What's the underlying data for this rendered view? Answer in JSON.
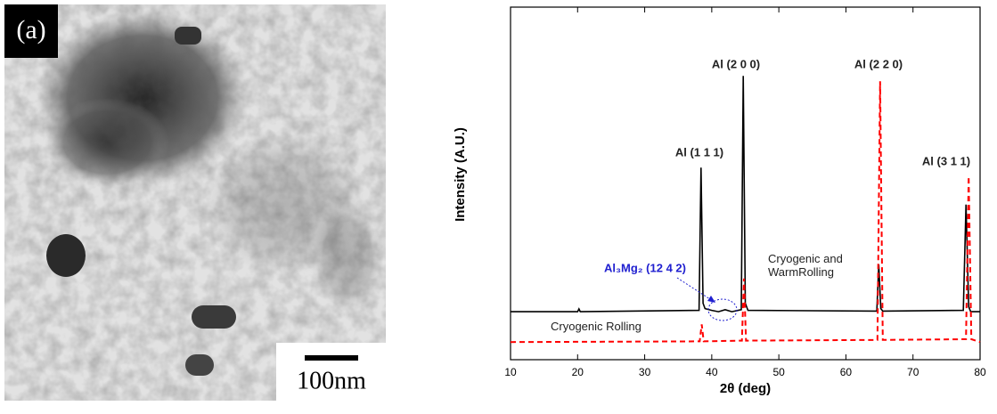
{
  "image": {
    "panel_label": "(a)",
    "scale_bar": "100nm"
  },
  "chart_data": {
    "type": "line",
    "xlabel": "2θ (deg)",
    "ylabel": "Intensity (A.U.)",
    "xlim": [
      10,
      80
    ],
    "xticks": [
      10,
      20,
      30,
      40,
      50,
      60,
      70,
      80
    ],
    "ylim": [
      0,
      100
    ],
    "series": [
      {
        "name": "Cryogenic and WarmRolling",
        "color": "#000000",
        "dash": false,
        "x": [
          10,
          20,
          20.2,
          20.4,
          38.1,
          38.4,
          38.7,
          39.0,
          40,
          41,
          42,
          43,
          44.4,
          44.7,
          45.0,
          45.4,
          64.6,
          64.9,
          65.2,
          65.5,
          77.5,
          77.9,
          78.3,
          78.6,
          80
        ],
        "values": [
          13.6,
          13.6,
          14.4,
          13.6,
          14,
          54.5,
          16,
          14.5,
          14,
          13.6,
          14.2,
          13.6,
          14.2,
          80.5,
          16,
          14,
          13.8,
          27,
          14.5,
          13.8,
          14,
          44,
          15,
          13.6,
          13.6
        ]
      },
      {
        "name": "Cryogenic Rolling",
        "color": "#ff0000",
        "dash": true,
        "x": [
          10,
          38.2,
          38.5,
          38.8,
          44.5,
          44.8,
          45.1,
          64.7,
          65.1,
          65.5,
          77.9,
          78.3,
          78.7,
          80
        ],
        "values": [
          5,
          5.2,
          10,
          5.2,
          5.4,
          23,
          5.4,
          5.6,
          79,
          5.6,
          5.8,
          52,
          5.8,
          5
        ]
      }
    ],
    "annotations": [
      "Al (1 1 1)",
      "Al (2 0 0)",
      "Al (2 2 0)",
      "Al (3 1 1)",
      "Al₃Mg₂ (12 4 2)"
    ]
  }
}
